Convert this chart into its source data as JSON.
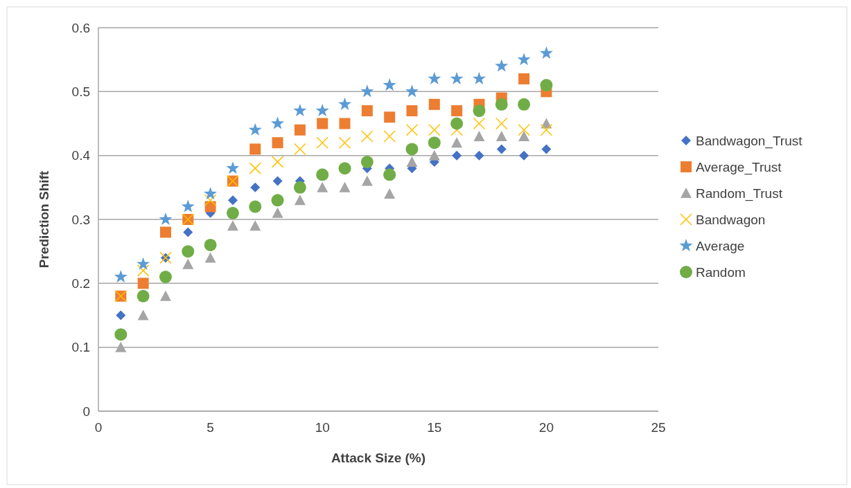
{
  "chart_data": {
    "type": "scatter",
    "xlabel": "Attack Size (%)",
    "ylabel": "Prediction Shift",
    "x": [
      1,
      2,
      3,
      4,
      5,
      6,
      7,
      8,
      9,
      10,
      11,
      12,
      13,
      14,
      15,
      16,
      17,
      18,
      19,
      20
    ],
    "xlim": [
      0,
      25
    ],
    "xticks": [
      0,
      5,
      10,
      15,
      20,
      25
    ],
    "ylim": [
      0,
      0.6
    ],
    "yticks": [
      0,
      0.1,
      0.2,
      0.3,
      0.4,
      0.5,
      0.6
    ],
    "grid": "y",
    "legend": "right",
    "series": [
      {
        "name": "Bandwagon_Trust",
        "color": "#4472c4",
        "marker": "diamond",
        "values": [
          0.15,
          null,
          0.24,
          0.28,
          0.31,
          0.33,
          0.35,
          0.36,
          0.36,
          null,
          null,
          0.38,
          0.38,
          0.38,
          0.39,
          0.4,
          0.4,
          0.41,
          0.4,
          0.41
        ]
      },
      {
        "name": "Average_Trust",
        "color": "#ed7d31",
        "marker": "square",
        "values": [
          0.18,
          0.2,
          0.28,
          0.3,
          0.32,
          0.36,
          0.41,
          0.42,
          0.44,
          0.45,
          0.45,
          0.47,
          0.46,
          0.47,
          0.48,
          0.47,
          0.48,
          0.49,
          0.52,
          0.5
        ]
      },
      {
        "name": "Random_Trust",
        "color": "#a5a5a5",
        "marker": "triangle",
        "values": [
          0.1,
          0.15,
          0.18,
          0.23,
          0.24,
          0.29,
          0.29,
          0.31,
          0.33,
          0.35,
          0.35,
          0.36,
          0.34,
          0.39,
          0.4,
          0.42,
          0.43,
          0.43,
          0.43,
          0.45
        ]
      },
      {
        "name": "Bandwagon",
        "color": "#ffc000",
        "marker": "cross",
        "values": [
          0.18,
          0.22,
          0.24,
          0.3,
          0.33,
          0.36,
          0.38,
          0.39,
          0.41,
          0.42,
          0.42,
          0.43,
          0.43,
          0.44,
          0.44,
          0.44,
          0.45,
          0.45,
          0.44,
          0.44
        ]
      },
      {
        "name": "Average",
        "color": "#5b9bd5",
        "marker": "star",
        "values": [
          0.21,
          0.23,
          0.3,
          0.32,
          0.34,
          0.38,
          0.44,
          0.45,
          0.47,
          0.47,
          0.48,
          0.5,
          0.51,
          0.5,
          0.52,
          0.52,
          0.52,
          0.54,
          0.55,
          0.56
        ]
      },
      {
        "name": "Random",
        "color": "#70ad47",
        "marker": "circle",
        "values": [
          0.12,
          0.18,
          0.21,
          0.25,
          0.26,
          0.31,
          0.32,
          0.33,
          0.35,
          0.37,
          0.38,
          0.39,
          0.37,
          0.41,
          0.42,
          0.45,
          0.47,
          0.48,
          0.48,
          0.51
        ]
      }
    ]
  }
}
